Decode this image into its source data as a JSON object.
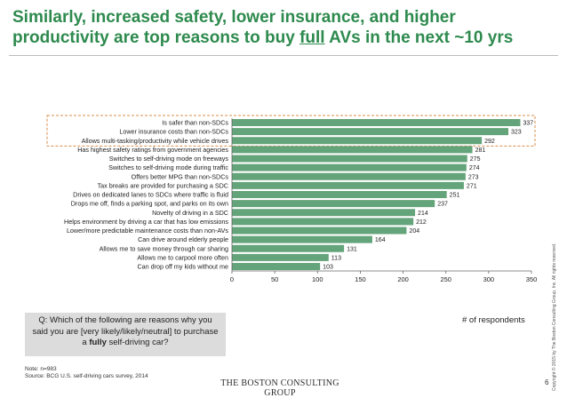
{
  "title": {
    "line1": "Similarly, increased safety, lower insurance, and higher",
    "line2_pre": "productivity are top reasons to buy ",
    "line2_underlined": "full",
    "line2_post": " AVs in the next ~10 yrs"
  },
  "question": {
    "line1": "Q: Which of the following are reasons why you",
    "line2": "said you are [very likely/likely/neutral] to purchase",
    "line3_pre": "a ",
    "line3_bold": "fully",
    "line3_post": " self-driving car?"
  },
  "notes": {
    "note": "Note: n=983",
    "source": "Source: BCG U.S. self-driving cars survey, 2014"
  },
  "footer": {
    "logo": "THE BOSTON CONSULTING GROUP",
    "page": "6",
    "copyright": "Copyright © 2015 by The Boston Consulting Group, Inc. All rights reserved."
  },
  "colors": {
    "bar": "#64a47a",
    "title": "#2e8a4e",
    "highlight_border": "#d98c4a"
  },
  "chart_data": {
    "type": "bar",
    "orientation": "horizontal",
    "categories": [
      "Is safer than non-SDCs",
      "Lower insurance costs than non-SDCs",
      "Allows multi-tasking/productivity while vehicle drives",
      "Has highest safety ratings from government agencies",
      "Switches to self-driving mode on freeways",
      "Switches to self-driving mode during traffic",
      "Offers better MPG than non-SDCs",
      "Tax breaks are provided for purchasing a SDC",
      "Drives on dedicated lanes to SDCs where traffic is fluid",
      "Drops me off, finds a parking spot, and parks on its own",
      "Novelty of driving in a SDC",
      "Helps environment by driving a car that has low emissions",
      "Lower/more predictable maintenance costs than non-AVs",
      "Can drive around elderly people",
      "Allows me to save money through car sharing",
      "Allows me to carpool more often",
      "Can drop off my kids without me"
    ],
    "values": [
      337,
      323,
      292,
      281,
      275,
      274,
      273,
      271,
      251,
      237,
      214,
      212,
      204,
      164,
      131,
      113,
      103
    ],
    "xlabel": "# of respondents",
    "xlim": [
      0,
      350
    ],
    "xticks": [
      0,
      50,
      100,
      150,
      200,
      250,
      300,
      350
    ],
    "highlighted_count": 3
  }
}
